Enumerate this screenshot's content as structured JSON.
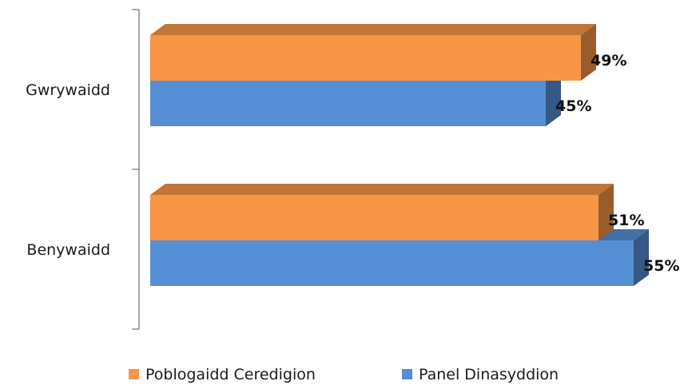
{
  "chart_data": {
    "type": "bar",
    "orientation": "horizontal",
    "style": "3d",
    "categories": [
      "Gwrywaidd",
      "Benywaidd"
    ],
    "series": [
      {
        "name": "Poblogaidd Ceredigion",
        "values": [
          49,
          51
        ],
        "labels": [
          "49%",
          "51%"
        ],
        "color": "#F79646"
      },
      {
        "name": "Panel Dinasyddion",
        "values": [
          45,
          55
        ],
        "labels": [
          "45%",
          "55%"
        ],
        "color": "#558ED5"
      }
    ],
    "unit": "%",
    "xlim": [
      0,
      55
    ],
    "grid": false,
    "legend_position": "bottom"
  }
}
